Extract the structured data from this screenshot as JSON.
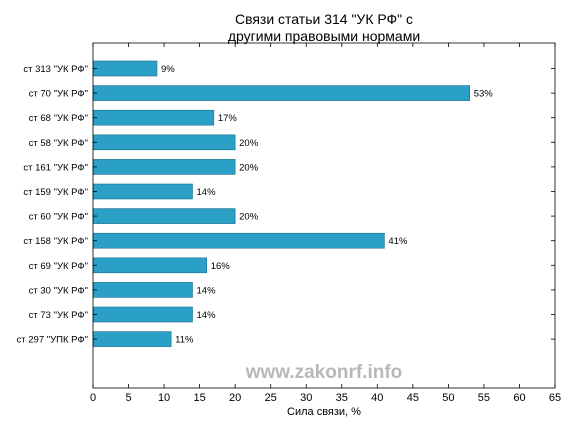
{
  "chart_data": {
    "type": "bar",
    "orientation": "horizontal",
    "title_lines": [
      "Связи статьи 314 \"УК РФ\" с",
      "другими правовыми нормами"
    ],
    "xlabel": "Сила связи, %",
    "ylabel": "",
    "xlim": [
      0,
      65
    ],
    "xticks": [
      0,
      5,
      10,
      15,
      20,
      25,
      30,
      35,
      40,
      45,
      50,
      55,
      60,
      65
    ],
    "grid": false,
    "categories": [
      "ст 313 \"УК РФ\"",
      "ст 70 \"УК РФ\"",
      "ст 68 \"УК РФ\"",
      "ст 58 \"УК РФ\"",
      "ст 161 \"УК РФ\"",
      "ст 159 \"УК РФ\"",
      "ст 60 \"УК РФ\"",
      "ст 158 \"УК РФ\"",
      "ст 69 \"УК РФ\"",
      "ст 30 \"УК РФ\"",
      "ст 73 \"УК РФ\"",
      "ст 297 \"УПК РФ\""
    ],
    "values": [
      9,
      53,
      17,
      20,
      20,
      14,
      20,
      41,
      16,
      14,
      14,
      11
    ],
    "value_labels": [
      "9%",
      "53%",
      "17%",
      "20%",
      "20%",
      "14%",
      "20%",
      "41%",
      "16%",
      "14%",
      "14%",
      "11%"
    ],
    "colors": {
      "bar_fill": "#2aa0c6",
      "bar_edge": "#1f6f8a",
      "axis": "#000000",
      "watermark": "#b8b8b8"
    }
  },
  "watermark": "www.zakonrf.info"
}
